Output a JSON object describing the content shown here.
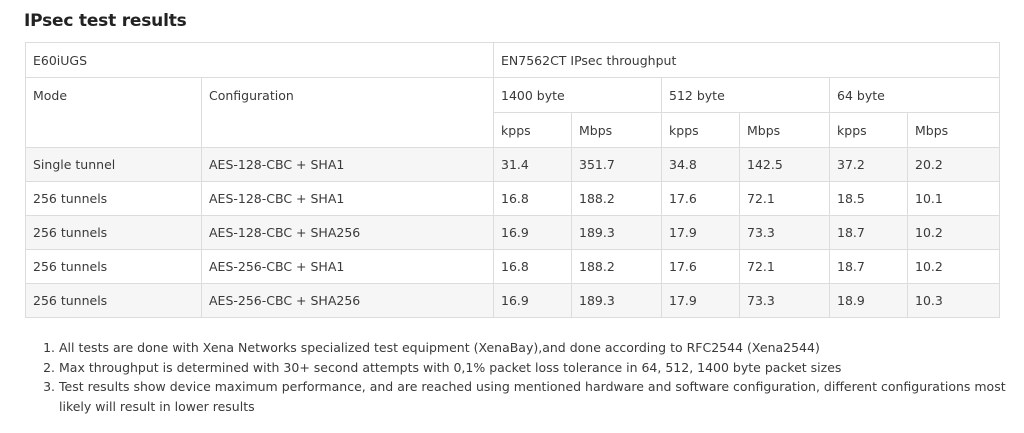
{
  "page": {
    "title": "IPsec test results"
  },
  "table": {
    "device_label": "E60iUGS",
    "throughput_label": "EN7562CT IPsec throughput",
    "mode_header": "Mode",
    "configuration_header": "Configuration",
    "packet_sizes": [
      "1400 byte",
      "512 byte",
      "64 byte"
    ],
    "unit_headers": [
      "kpps",
      "Mbps",
      "kpps",
      "Mbps",
      "kpps",
      "Mbps"
    ],
    "rows": [
      {
        "mode": "Single tunnel",
        "configuration": "AES-128-CBC + SHA1",
        "values": [
          "31.4",
          "351.7",
          "34.8",
          "142.5",
          "37.2",
          "20.2"
        ]
      },
      {
        "mode": "256 tunnels",
        "configuration": "AES-128-CBC + SHA1",
        "values": [
          "16.8",
          "188.2",
          "17.6",
          "72.1",
          "18.5",
          "10.1"
        ]
      },
      {
        "mode": "256 tunnels",
        "configuration": "AES-128-CBC + SHA256",
        "values": [
          "16.9",
          "189.3",
          "17.9",
          "73.3",
          "18.7",
          "10.2"
        ]
      },
      {
        "mode": "256 tunnels",
        "configuration": "AES-256-CBC + SHA1",
        "values": [
          "16.8",
          "188.2",
          "17.6",
          "72.1",
          "18.7",
          "10.2"
        ]
      },
      {
        "mode": "256 tunnels",
        "configuration": "AES-256-CBC + SHA256",
        "values": [
          "16.9",
          "189.3",
          "17.9",
          "73.3",
          "18.9",
          "10.3"
        ]
      }
    ]
  },
  "notes": [
    "All tests are done with Xena Networks specialized test equipment (XenaBay),and done according to RFC2544 (Xena2544)",
    "Max throughput is determined with 30+ second attempts with 0,1% packet loss tolerance in 64, 512, 1400 byte packet sizes",
    "Test results show device maximum performance, and are reached using mentioned hardware and software configuration, different configurations most likely will result in lower results"
  ]
}
